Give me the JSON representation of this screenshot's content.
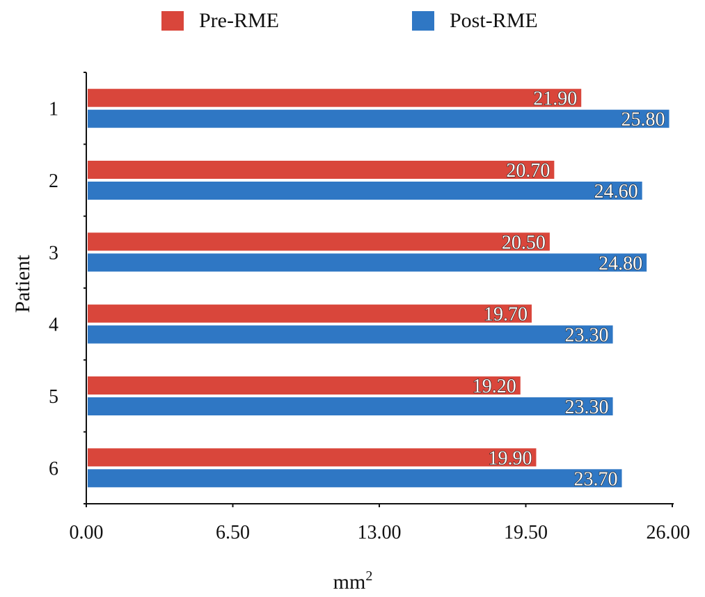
{
  "chart_data": {
    "type": "bar",
    "orientation": "horizontal",
    "categories": [
      "1",
      "2",
      "3",
      "4",
      "5",
      "6"
    ],
    "series": [
      {
        "name": "Pre-RME",
        "color": "#d9463b",
        "values": [
          21.9,
          20.7,
          20.5,
          19.7,
          19.2,
          19.9
        ]
      },
      {
        "name": "Post-RME",
        "color": "#2f77c4",
        "values": [
          25.8,
          24.6,
          24.8,
          23.3,
          23.3,
          23.7
        ]
      }
    ],
    "data_labels": {
      "Pre-RME": [
        "21.90",
        "20.70",
        "20.50",
        "19.70",
        "19.20",
        "19.90"
      ],
      "Post-RME": [
        "25.80",
        "24.60",
        "24.80",
        "23.30",
        "23.30",
        "23.70"
      ]
    },
    "xlabel": "mm",
    "xlabel_superscript": "2",
    "ylabel": "Patient",
    "xlim": [
      0,
      26
    ],
    "xticks": [
      0,
      6.5,
      13,
      19.5,
      26
    ],
    "xtick_labels": [
      "0.00",
      "6.50",
      "13.00",
      "19.50",
      "26.00"
    ],
    "grid": false,
    "legend": "top-center"
  }
}
